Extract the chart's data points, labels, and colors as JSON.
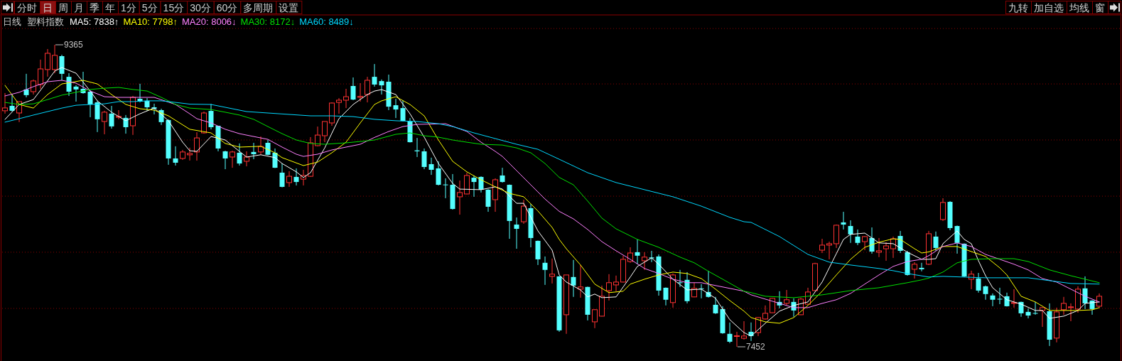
{
  "chart_data": {
    "type": "candlestick",
    "title": "日线",
    "subtitle": "塑料指数",
    "legend": "top left",
    "grid": true,
    "yticks": [
      {
        "value": 9468,
        "label": null
      },
      {
        "value": 9117,
        "label": null
      },
      {
        "value": 8762,
        "label": null
      },
      {
        "value": 8406,
        "label": null
      },
      {
        "value": 8051,
        "label": null
      },
      {
        "value": 7695,
        "label": null
      }
    ],
    "colors": [
      "#ff3232",
      "#54ffff",
      "#ff3232",
      "#54ffff",
      "#ff3232",
      "#ff3232",
      "#ff3232",
      "#ff3232",
      "#54ffff",
      "#54ffff",
      "#54ffff",
      "#54ffff",
      "#54ffff",
      "#54ffff",
      "#ff3232",
      "#54ffff",
      "#ff3232",
      "#54ffff",
      "#ff3232",
      "#54ffff",
      "#54ffff",
      "#54ffff",
      "#54ffff",
      "#54ffff",
      "#54ffff",
      "#ff3232",
      "#ff3232",
      "#ff3232",
      "#ff3232",
      "#54ffff",
      "#54ffff",
      "#54ffff",
      "#ff3232",
      "#54ffff",
      "#ff3232",
      "#54ffff",
      "#ff3232",
      "#54ffff",
      "#54ffff",
      "#54ffff",
      "#ff3232",
      "#54ffff",
      "#ff3232",
      "#ff3232",
      "#ff3232",
      "#ff3232",
      "#ff3232",
      "#ff3232",
      "#ff3232",
      "#54ffff",
      "#ff3232",
      "#ff3232",
      "#54ffff",
      "#54ffff",
      "#54ffff",
      "#54ffff",
      "#54ffff",
      "#54ffff",
      "#54ffff",
      "#54ffff",
      "#54ffff",
      "#54ffff",
      "#54ffff",
      "#54ffff",
      "#ff3232",
      "#ff3232",
      "#54ffff",
      "#54ffff",
      "#54ffff",
      "#ff3232",
      "#54ffff",
      "#54ffff",
      "#54ffff",
      "#ff3232",
      "#54ffff",
      "#54ffff",
      "#54ffff",
      "#ff3232",
      "#54ffff",
      "#ff3232",
      "#54ffff",
      "#ff3232",
      "#54ffff",
      "#ff3232",
      "#ff3232",
      "#ff3232",
      "#ff3232",
      "#ff3232",
      "#ff3232",
      "#54ffff",
      "#ff3232",
      "#54ffff",
      "#54ffff",
      "#54ffff",
      "#ff3232",
      "#54ffff",
      "#54ffff",
      "#ff3232",
      "#54ffff",
      "#54ffff",
      "#54ffff",
      "#54ffff",
      "#54ffff",
      "#ff3232",
      "#ff3232",
      "#54ffff",
      "#ff3232",
      "#ff3232",
      "#ff3232",
      "#54ffff",
      "#ff3232",
      "#54ffff",
      "#ff3232",
      "#ff3232",
      "#ff3232",
      "#ff3232",
      "#ff3232",
      "#ff3232",
      "#54ffff",
      "#54ffff",
      "#54ffff",
      "#ff3232",
      "#54ffff",
      "#ff3232",
      "#ff3232",
      "#ff3232",
      "#54ffff",
      "#54ffff",
      "#ff3232",
      "#54ffff",
      "#ff3232",
      "#54ffff",
      "#ff3232",
      "#54ffff",
      "#54ffff",
      "#54ffff",
      "#ff3232",
      "#54ffff",
      "#54ffff",
      "#54ffff",
      "#54ffff",
      "#54ffff",
      "#ff3232",
      "#54ffff",
      "#54ffff",
      "#54ffff",
      "#ff3232",
      "#54ffff",
      "#ff3232",
      "#ff3232",
      "#ff3232",
      "#ff3232",
      "#54ffff",
      "#54ffff",
      "#ff3232"
    ],
    "categories": [
      null,
      null,
      null,
      null,
      null,
      null,
      null,
      null,
      null,
      null,
      null,
      null,
      null,
      null,
      null,
      null,
      null,
      null,
      null,
      null,
      null,
      null,
      null,
      null,
      null,
      null,
      null,
      null,
      null,
      null,
      null,
      null,
      null,
      null,
      null,
      null,
      null,
      null,
      null,
      null,
      null,
      null,
      null,
      null,
      null,
      null,
      null,
      null,
      null,
      null,
      null,
      null,
      null,
      null,
      null,
      null,
      null,
      null,
      null,
      null,
      null,
      null,
      null,
      null,
      null,
      null,
      null,
      null,
      null,
      null,
      null,
      null,
      null,
      null,
      null,
      null,
      null,
      null,
      null,
      null,
      null,
      null,
      null,
      null,
      null,
      null,
      null,
      null,
      null,
      null,
      null,
      null,
      null,
      null,
      null,
      null,
      null,
      null,
      null,
      null,
      null,
      null,
      null,
      null,
      null,
      null,
      null,
      null,
      null,
      null,
      null,
      null,
      null,
      null,
      null,
      null,
      null,
      null,
      null,
      null,
      null,
      null,
      null,
      null,
      null,
      null,
      null,
      null,
      null,
      null,
      null,
      null,
      null,
      null,
      null,
      null,
      null,
      null,
      null,
      null,
      null,
      null,
      null,
      null,
      null,
      null,
      null,
      null,
      null,
      null,
      null,
      null,
      null,
      null,
      null
    ],
    "ohlc": [
      [
        8947,
        9059,
        8929,
        8965
      ],
      [
        8978,
        9050,
        8942,
        8947
      ],
      [
        8933,
        9005,
        8875,
        9005
      ],
      [
        9082,
        9181,
        9032,
        9046
      ],
      [
        9068,
        9145,
        9050,
        9136
      ],
      [
        9113,
        9271,
        9086,
        9212
      ],
      [
        9208,
        9338,
        9163,
        9311
      ],
      [
        9208,
        9365,
        9185,
        9298
      ],
      [
        9293,
        9302,
        9140,
        9181
      ],
      [
        9162,
        9185,
        9041,
        9068
      ],
      [
        9100,
        9109,
        9005,
        9082
      ],
      [
        9086,
        9194,
        9055,
        9059
      ],
      [
        9068,
        9077,
        8906,
        8987
      ],
      [
        9000,
        9010,
        8812,
        8893
      ],
      [
        8879,
        8947,
        8798,
        8938
      ],
      [
        8929,
        8978,
        8834,
        8848
      ],
      [
        8906,
        8951,
        8893,
        8911
      ],
      [
        8902,
        8920,
        8802,
        8843
      ],
      [
        8852,
        9041,
        8794,
        9032
      ],
      [
        9023,
        9118,
        9000,
        9005
      ],
      [
        9010,
        9027,
        8947,
        8969
      ],
      [
        8969,
        8992,
        8924,
        8960
      ],
      [
        8951,
        8960,
        8857,
        8875
      ],
      [
        8888,
        8893,
        8605,
        8645
      ],
      [
        8645,
        8722,
        8600,
        8618
      ],
      [
        8645,
        8699,
        8636,
        8686
      ],
      [
        8668,
        8713,
        8632,
        8677
      ],
      [
        8686,
        8811,
        8631,
        8775
      ],
      [
        8807,
        8942,
        8802,
        8933
      ],
      [
        8946,
        8991,
        8829,
        8843
      ],
      [
        8852,
        8852,
        8690,
        8708
      ],
      [
        8690,
        8694,
        8577,
        8645
      ],
      [
        8654,
        8694,
        8586,
        8686
      ],
      [
        8681,
        8740,
        8600,
        8613
      ],
      [
        8627,
        8690,
        8595,
        8654
      ],
      [
        8686,
        8744,
        8640,
        8672
      ],
      [
        8686,
        8784,
        8668,
        8721
      ],
      [
        8744,
        8762,
        8665,
        8668
      ],
      [
        8681,
        8708,
        8584,
        8586
      ],
      [
        8555,
        8613,
        8462,
        8465
      ],
      [
        8492,
        8564,
        8465,
        8532
      ],
      [
        8528,
        8582,
        8474,
        8496
      ],
      [
        8514,
        8573,
        8474,
        8537
      ],
      [
        8532,
        8780,
        8528,
        8744
      ],
      [
        8726,
        8847,
        8722,
        8793
      ],
      [
        8789,
        8879,
        8748,
        8879
      ],
      [
        8870,
        9000,
        8852,
        8996
      ],
      [
        9000,
        9027,
        8928,
        9014
      ],
      [
        9014,
        9086,
        8964,
        9036
      ],
      [
        9104,
        9158,
        9014,
        9018
      ],
      [
        9032,
        9122,
        9005,
        9038
      ],
      [
        9050,
        9162,
        9000,
        9140
      ],
      [
        9162,
        9243,
        9100,
        9113
      ],
      [
        9135,
        9145,
        9050,
        9108
      ],
      [
        9131,
        9176,
        8951,
        8973
      ],
      [
        8982,
        9023,
        8901,
        8955
      ],
      [
        8964,
        9014,
        8880,
        8883
      ],
      [
        8879,
        8901,
        8746,
        8748
      ],
      [
        8696,
        8775,
        8654,
        8690
      ],
      [
        8690,
        8708,
        8577,
        8591
      ],
      [
        8609,
        8650,
        8541,
        8573
      ],
      [
        8582,
        8627,
        8474,
        8478
      ],
      [
        8480,
        8519,
        8393,
        8476
      ],
      [
        8478,
        8546,
        8321,
        8325
      ],
      [
        8402,
        8505,
        8289,
        8429
      ],
      [
        8420,
        8555,
        8418,
        8537
      ],
      [
        8523,
        8537,
        8402,
        8496
      ],
      [
        8528,
        8532,
        8429,
        8447
      ],
      [
        8447,
        8450,
        8307,
        8339
      ],
      [
        8384,
        8519,
        8307,
        8510
      ],
      [
        8537,
        8586,
        8492,
        8496
      ],
      [
        8478,
        8480,
        8136,
        8249
      ],
      [
        8226,
        8271,
        8073,
        8199
      ],
      [
        8244,
        8384,
        8231,
        8343
      ],
      [
        8330,
        8357,
        8082,
        8141
      ],
      [
        8123,
        8125,
        7970,
        8006
      ],
      [
        7984,
        8024,
        7844,
        7939
      ],
      [
        7898,
        8011,
        7853,
        7912
      ],
      [
        7898,
        7900,
        7547,
        7556
      ],
      [
        7655,
        7907,
        7534,
        7907
      ],
      [
        7894,
        8002,
        7768,
        7840
      ],
      [
        7817,
        7970,
        7763,
        7831
      ],
      [
        7831,
        7833,
        7619,
        7655
      ],
      [
        7610,
        7689,
        7570,
        7687
      ],
      [
        7646,
        7840,
        7644,
        7772
      ],
      [
        7808,
        7912,
        7745,
        7858
      ],
      [
        7844,
        7903,
        7804,
        7862
      ],
      [
        7862,
        8029,
        7860,
        8006
      ],
      [
        7992,
        8082,
        7984,
        8046
      ],
      [
        8051,
        8132,
        7975,
        8029
      ],
      [
        7997,
        8051,
        7939,
        8020
      ],
      [
        8018,
        8060,
        7988,
        8012
      ],
      [
        8024,
        8037,
        7776,
        7808
      ],
      [
        7826,
        7828,
        7714,
        7750
      ],
      [
        7732,
        7916,
        7700,
        7907
      ],
      [
        7860,
        7939,
        7831,
        7856
      ],
      [
        7876,
        7925,
        7727,
        7741
      ],
      [
        7768,
        7858,
        7766,
        7822
      ],
      [
        7822,
        7849,
        7759,
        7818
      ],
      [
        7799,
        7934,
        7764,
        7768
      ],
      [
        7718,
        7768,
        7660,
        7664
      ],
      [
        7691,
        7709,
        7534,
        7538
      ],
      [
        7534,
        7606,
        7475,
        7484
      ],
      [
        7518,
        7547,
        7452,
        7522
      ],
      [
        7506,
        7614,
        7498,
        7520
      ],
      [
        7547,
        7606,
        7489,
        7520
      ],
      [
        7542,
        7639,
        7520,
        7637
      ],
      [
        7628,
        7714,
        7624,
        7664
      ],
      [
        7668,
        7761,
        7666,
        7759
      ],
      [
        7736,
        7804,
        7695,
        7714
      ],
      [
        7727,
        7812,
        7714,
        7750
      ],
      [
        7736,
        7759,
        7642,
        7682
      ],
      [
        7655,
        7763,
        7653,
        7754
      ],
      [
        7722,
        7826,
        7720,
        7799
      ],
      [
        7808,
        7984,
        7804,
        7979
      ],
      [
        8064,
        8136,
        8046,
        8096
      ],
      [
        8096,
        8118,
        8006,
        8105
      ],
      [
        8105,
        8226,
        8078,
        8222
      ],
      [
        8240,
        8307,
        8195,
        8226
      ],
      [
        8217,
        8253,
        8110,
        8164
      ],
      [
        8150,
        8195,
        8096,
        8110
      ],
      [
        8118,
        8154,
        8064,
        8150
      ],
      [
        8141,
        8208,
        8042,
        8055
      ],
      [
        8051,
        8141,
        8020,
        8060
      ],
      [
        8073,
        8114,
        7997,
        8091
      ],
      [
        8073,
        8150,
        8015,
        8136
      ],
      [
        8154,
        8186,
        8046,
        8060
      ],
      [
        8051,
        8060,
        7903,
        7907
      ],
      [
        7943,
        7988,
        7884,
        7975
      ],
      [
        7952,
        7984,
        7930,
        7943
      ],
      [
        7975,
        8186,
        7970,
        8168
      ],
      [
        8150,
        8182,
        8060,
        8078
      ],
      [
        8258,
        8393,
        8249,
        8366
      ],
      [
        8370,
        8375,
        8190,
        8204
      ],
      [
        8217,
        8220,
        8042,
        8110
      ],
      [
        8105,
        8107,
        7894,
        7898
      ],
      [
        7880,
        7934,
        7817,
        7912
      ],
      [
        7885,
        7920,
        7795,
        7808
      ],
      [
        7835,
        7840,
        7750,
        7786
      ],
      [
        7777,
        7790,
        7709,
        7750
      ],
      [
        7756,
        7826,
        7722,
        7752
      ],
      [
        7772,
        7795,
        7707,
        7709
      ],
      [
        7727,
        7817,
        7700,
        7732
      ],
      [
        7736,
        7738,
        7642,
        7664
      ],
      [
        7673,
        7695,
        7632,
        7650
      ],
      [
        7666,
        7736,
        7655,
        7662
      ],
      [
        7682,
        7702,
        7578,
        7700
      ],
      [
        7677,
        7727,
        7457,
        7497
      ],
      [
        7507,
        7700,
        7480,
        7673
      ],
      [
        7687,
        7768,
        7655,
        7727
      ],
      [
        7700,
        7727,
        7614,
        7705
      ],
      [
        7691,
        7835,
        7668,
        7817
      ],
      [
        7822,
        7898,
        7691,
        7727
      ],
      [
        7745,
        7747,
        7655,
        7691
      ],
      [
        7709,
        7790,
        7700,
        7772
      ]
    ],
    "series": [
      {
        "name": "MA5: 7838↑",
        "type": "line",
        "color": "#ffffff",
        "values": [
          8892,
          null,
          8987,
          null,
          9018,
          9077,
          null,
          9198,
          9221,
          null,
          9185,
          null,
          9072,
          9010,
          null,
          8938,
          null,
          8884,
          null,
          8928,
          null,
          8964,
          null,
          8884,
          null,
          8748,
          8694,
          8690,
          null,
          8784,
          null,
          8762,
          null,
          null,
          8654,
          null,
          8668,
          null,
          8650,
          8613,
          null,
          8560,
          8524,
          8555,
          null,
          8712,
          null,
          8897,
          null,
          8987,
          null,
          9050,
          9072,
          9081,
          null,
          9050,
          null,
          8928,
          null,
          8780,
          null,
          8613,
          null,
          8487,
          8451,
          null,
          null,
          8447,
          null,
          8465,
          8451,
          null,
          8361,
          8361,
          null,
          8186,
          null,
          8064,
          7907,
          7862,
          null,
          7812,
          7768,
          7786,
          7763,
          null,
          7768,
          null,
          7894,
          7961,
          null,
          8015,
          7975,
          null,
          7880,
          null,
          7812,
          null,
          7817,
          null,
          7759,
          null,
          7624,
          null,
          7542,
          7520,
          null,
          7601,
          null,
          7678,
          null,
          7714,
          null,
          7736,
          null,
          7862,
          null,
          8042,
          8132,
          8164,
          null,
          8172,
          null,
          8110,
          null,
          8105,
          null,
          8051,
          null,
          8006,
          8006,
          8010,
          8105,
          null,
          8186,
          8132,
          8105,
          7997,
          7902,
          7826,
          null,
          7750,
          null,
          7722,
          null,
          7682,
          7682,
          7632,
          null,
          7646,
          null,
          7682,
          7727,
          null,
          7736
        ]
      },
      {
        "name": "MA10: 7798↑",
        "type": "line",
        "color": "#ffff00",
        "values": [
          9108,
          null,
          8987,
          null,
          8964,
          null,
          9050,
          null,
          9117,
          null,
          null,
          9140,
          null,
          9117,
          null,
          9050,
          null,
          8987,
          null,
          8960,
          null,
          8951,
          null,
          8915,
          null,
          null,
          8830,
          null,
          null,
          8807,
          null,
          8740,
          null,
          8717,
          null,
          null,
          8722,
          null,
          8681,
          8650,
          null,
          null,
          8600,
          null,
          8622,
          null,
          8681,
          null,
          8748,
          null,
          8870,
          null,
          8987,
          9010,
          null,
          9036,
          null,
          8987,
          null,
          8915,
          null,
          8762,
          null,
          8627,
          null,
          8560,
          null,
          8510,
          null,
          8465,
          null,
          8424,
          null,
          8402,
          null,
          8312,
          null,
          8208,
          8132,
          8073,
          null,
          7970,
          null,
          7849,
          null,
          7795,
          null,
          7804,
          7849,
          null,
          7880,
          null,
          7907,
          null,
          7925,
          null,
          7916,
          null,
          7884,
          null,
          7817,
          null,
          7745,
          null,
          7678,
          7637,
          null,
          7610,
          null,
          7601,
          null,
          7637,
          null,
          7714,
          null,
          7804,
          null,
          7907,
          null,
          8006,
          null,
          8082,
          null,
          8114,
          null,
          8136,
          8132,
          null,
          8073,
          8046,
          8053,
          null,
          8087,
          null,
          8087,
          null,
          8055,
          null,
          8024,
          null,
          7952,
          7907,
          null,
          7772,
          null,
          7736,
          null,
          7682,
          null,
          7682,
          null,
          7682,
          null,
          7686,
          7700
        ]
      },
      {
        "name": "MA20: 8006↓",
        "type": "line",
        "color": "#ff80ff",
        "values": [
          9041,
          null,
          9064,
          null,
          9100,
          null,
          9131,
          null,
          9140,
          null,
          9122,
          null,
          9072,
          null,
          9036,
          null,
          9032,
          null,
          9032,
          null,
          null,
          9032,
          null,
          null,
          8987,
          null,
          8928,
          8897,
          null,
          8870,
          null,
          8830,
          null,
          8802,
          null,
          8784,
          null,
          8766,
          null,
          8717,
          null,
          8672,
          8658,
          null,
          8672,
          null,
          8699,
          null,
          8717,
          null,
          8735,
          null,
          8778,
          null,
          8816,
          null,
          8847,
          null,
          8861,
          null,
          null,
          null,
          8865,
          null,
          null,
          8816,
          null,
          8748,
          null,
          8690,
          8658,
          null,
          8568,
          null,
          8478,
          null,
          8388,
          null,
          8310,
          null,
          8262,
          null,
          8195,
          null,
          8118,
          null,
          8060,
          null,
          8006,
          null,
          7948,
          null,
          7916,
          null,
          7880,
          null,
          7858,
          null,
          7858,
          null,
          7840,
          null,
          7822,
          null,
          7804,
          7781,
          null,
          null,
          null,
          7727,
          null,
          7700,
          null,
          7700,
          null,
          7727,
          null,
          7750,
          null,
          7790,
          null,
          7849,
          null,
          7907,
          null,
          7961,
          null,
          7992,
          null,
          8006,
          8029,
          null,
          8087,
          null,
          8110,
          null,
          8087,
          null,
          8037,
          null,
          8006,
          null,
          7975,
          null,
          7939,
          null,
          7884,
          null,
          7862,
          null,
          7817,
          null,
          7772,
          null,
          7736
        ]
      },
      {
        "name": "MA30: 8172↓",
        "type": "line",
        "color": "#00e000",
        "values": [
          9000,
          null,
          8987,
          null,
          8991,
          null,
          9018,
          null,
          9046,
          null,
          9064,
          null,
          9082,
          null,
          9090,
          null,
          9095,
          null,
          9082,
          null,
          9072,
          null,
          9032,
          null,
          8987,
          null,
          8964,
          null,
          null,
          8955,
          null,
          8938,
          null,
          8920,
          null,
          8893,
          null,
          8847,
          null,
          8802,
          null,
          8762,
          null,
          8740,
          null,
          8735,
          null,
          null,
          8744,
          null,
          null,
          8757,
          8762,
          null,
          null,
          8798,
          null,
          8807,
          null,
          8789,
          null,
          8780,
          null,
          8762,
          null,
          8748,
          null,
          8735,
          null,
          null,
          8730,
          null,
          8712,
          null,
          8681,
          null,
          8613,
          null,
          8525,
          null,
          8478,
          null,
          8375,
          null,
          8267,
          null,
          8199,
          null,
          null,
          8132,
          null,
          null,
          8082,
          null,
          null,
          8020,
          null,
          7984,
          null,
          7930,
          null,
          7880,
          null,
          null,
          7804,
          7795,
          null,
          7772,
          null,
          null,
          null,
          7763,
          null,
          null,
          null,
          7781,
          null,
          null,
          null,
          7808,
          null,
          null,
          null,
          7826,
          null,
          null,
          null,
          7858,
          null,
          7876,
          7887,
          null,
          7925,
          null,
          7984,
          null,
          8006,
          null,
          null,
          8010,
          null,
          null,
          8010,
          null,
          7992,
          null,
          null,
          7939,
          null,
          null,
          7902,
          null,
          null,
          null,
          7858
        ]
      },
      {
        "name": "MA60: 8489↓",
        "type": "line",
        "color": "#00d8ff",
        "values": [
          8875,
          null,
          8897,
          null,
          8920,
          null,
          8942,
          null,
          8964,
          null,
          8982,
          null,
          8987,
          null,
          8991,
          null,
          9005,
          null,
          9005,
          null,
          9010,
          null,
          9010,
          null,
          9000,
          null,
          8989,
          null,
          null,
          8987,
          null,
          8969,
          null,
          null,
          8942,
          null,
          null,
          8933,
          null,
          null,
          8924,
          null,
          null,
          8915,
          null,
          null,
          8915,
          null,
          null,
          8910,
          null,
          null,
          8893,
          null,
          null,
          8884,
          null,
          null,
          8879,
          null,
          null,
          8865,
          null,
          8847,
          null,
          null,
          8807,
          null,
          null,
          8771,
          null,
          null,
          8735,
          null,
          null,
          8703,
          null,
          null,
          8640,
          null,
          null,
          null,
          8555,
          null,
          null,
          null,
          8492,
          null,
          null,
          null,
          8447,
          null,
          null,
          null,
          8402,
          null,
          null,
          null,
          8343,
          null,
          null,
          null,
          8272,
          null,
          8244,
          8240,
          null,
          null,
          null,
          8150,
          null,
          null,
          null,
          8037,
          null,
          null,
          7988,
          null,
          null,
          7970,
          null,
          null,
          null,
          7948,
          null,
          7934,
          null,
          7916,
          null,
          null,
          7894,
          null,
          7898,
          null,
          null,
          null,
          null,
          null,
          7889,
          null,
          null,
          null,
          null,
          null,
          7889,
          null,
          null,
          7871,
          null,
          null,
          7853,
          null,
          null,
          null,
          7849
        ]
      }
    ],
    "annotations": [
      "分时",
      "日",
      "周",
      "月",
      "季",
      "年",
      "1分",
      "5分",
      "15分",
      "30分",
      "60分",
      "多周期",
      "设置",
      "九转",
      "加自选",
      "均线",
      "窗",
      "9365",
      "7452"
    ]
  }
}
